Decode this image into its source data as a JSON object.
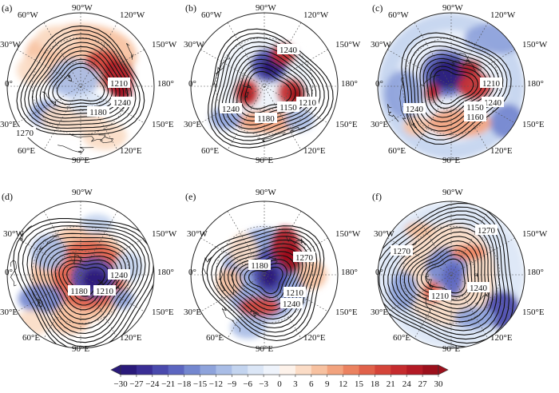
{
  "panels": [
    {
      "id": "a",
      "label": "(a)",
      "contour_labels": [
        "1210",
        "1240",
        "1180",
        "1270"
      ]
    },
    {
      "id": "b",
      "label": "(b)",
      "contour_labels": [
        "1240",
        "1210",
        "1150",
        "1240",
        "1180"
      ]
    },
    {
      "id": "c",
      "label": "(c)",
      "contour_labels": [
        "1210",
        "1240",
        "1150",
        "1240",
        "1160"
      ]
    },
    {
      "id": "d",
      "label": "(d)",
      "contour_labels": [
        "1240",
        "1180",
        "1210"
      ]
    },
    {
      "id": "e",
      "label": "(e)",
      "contour_labels": [
        "1270",
        "1180",
        "1210",
        "1240"
      ]
    },
    {
      "id": "f",
      "label": "(f)",
      "contour_labels": [
        "1270",
        "1270",
        "1240",
        "1210"
      ]
    }
  ],
  "longitude_labels": {
    "top_row": [
      "60°W",
      "90°W",
      "120°W",
      "30°W",
      "150°W",
      "0°",
      "180°",
      "30°E",
      "150°E",
      "60°E",
      "90°E",
      "120°E"
    ],
    "bottom_row": [
      "90°W",
      "30°W",
      "150°W",
      "0°",
      "180°",
      "30°E",
      "150°E",
      "60°E",
      "90°E",
      "120°E"
    ]
  },
  "colorbar": {
    "ticks": [
      "−30",
      "−27",
      "−24",
      "−21",
      "−18",
      "−15",
      "−12",
      "−9",
      "−6",
      "−3",
      "0",
      "3",
      "6",
      "9",
      "12",
      "15",
      "18",
      "21",
      "24",
      "27",
      "30"
    ],
    "colors": [
      "#2a1a7a",
      "#3a2e95",
      "#4a4aad",
      "#5c66c0",
      "#7487cf",
      "#8ea3db",
      "#a9bde6",
      "#c3d4ef",
      "#dbe6f6",
      "#eef3fb",
      "#fdf2ea",
      "#fbdcc6",
      "#f7c1a0",
      "#f2a37e",
      "#eb8260",
      "#e0614a",
      "#d44439",
      "#c52b2e",
      "#b31a25",
      "#9c101c"
    ],
    "end_low": "#2a1a7a",
    "end_high": "#9c101c"
  }
}
